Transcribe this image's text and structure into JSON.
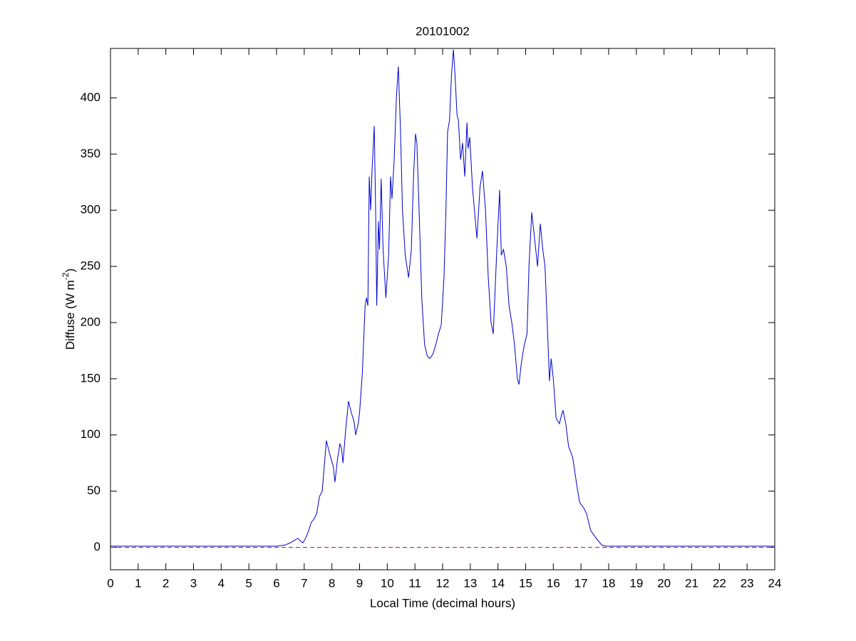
{
  "chart_data": {
    "type": "line",
    "title": "20101002",
    "xlabel": "Local Time (decimal hours)",
    "ylabel": [
      "Diffuse (W m",
      "-2",
      ")"
    ],
    "xlim": [
      0,
      24
    ],
    "xticks": [
      0,
      1,
      2,
      3,
      4,
      5,
      6,
      7,
      8,
      9,
      10,
      11,
      12,
      13,
      14,
      15,
      16,
      17,
      18,
      19,
      20,
      21,
      22,
      23,
      24
    ],
    "ylim": [
      -20,
      444
    ],
    "yticks": [
      0,
      50,
      100,
      150,
      200,
      250,
      300,
      350,
      400
    ],
    "hline": {
      "y": 0,
      "color": "#ff0000"
    },
    "series": [
      {
        "color": "#0000cc",
        "x": [
          0,
          0.5,
          1,
          1.5,
          2,
          2.5,
          3,
          3.5,
          4,
          4.5,
          5,
          5.5,
          6,
          6.3,
          6.5,
          6.77,
          6.85,
          6.95,
          7.05,
          7.15,
          7.25,
          7.35,
          7.45,
          7.55,
          7.65,
          7.8,
          7.9,
          8.0,
          8.05,
          8.11,
          8.2,
          8.29,
          8.35,
          8.4,
          8.5,
          8.6,
          8.7,
          8.8,
          8.86,
          8.95,
          9.0,
          9.1,
          9.2,
          9.25,
          9.3,
          9.35,
          9.4,
          9.45,
          9.53,
          9.58,
          9.62,
          9.68,
          9.72,
          9.78,
          9.85,
          9.95,
          10.05,
          10.12,
          10.17,
          10.25,
          10.33,
          10.4,
          10.48,
          10.55,
          10.65,
          10.77,
          10.87,
          10.95,
          11.02,
          11.07,
          11.15,
          11.25,
          11.35,
          11.45,
          11.54,
          11.65,
          11.75,
          11.85,
          11.95,
          12.05,
          12.12,
          12.18,
          12.25,
          12.32,
          12.39,
          12.45,
          12.52,
          12.57,
          12.65,
          12.72,
          12.8,
          12.88,
          12.92,
          12.98,
          13.08,
          13.24,
          13.35,
          13.44,
          13.55,
          13.65,
          13.75,
          13.83,
          13.95,
          14.06,
          14.12,
          14.2,
          14.3,
          14.4,
          14.5,
          14.6,
          14.7,
          14.76,
          14.85,
          14.95,
          15.05,
          15.12,
          15.22,
          15.3,
          15.43,
          15.53,
          15.62,
          15.7,
          15.78,
          15.86,
          15.92,
          16.0,
          16.1,
          16.22,
          16.3,
          16.35,
          16.45,
          16.55,
          16.7,
          16.85,
          16.95,
          17.1,
          17.2,
          17.35,
          17.55,
          17.75,
          17.9,
          18.5,
          19,
          20,
          21,
          22,
          23,
          24
        ],
        "values": [
          1,
          1,
          1,
          1,
          1,
          1,
          1,
          1,
          1,
          1,
          1,
          1,
          1,
          2,
          4,
          8,
          6,
          4,
          8,
          14,
          22,
          25,
          30,
          45,
          50,
          95,
          85,
          76,
          72,
          58,
          78,
          92,
          88,
          75,
          105,
          130,
          120,
          112,
          100,
          110,
          120,
          155,
          215,
          222,
          215,
          330,
          300,
          335,
          375,
          300,
          215,
          290,
          265,
          328,
          265,
          222,
          260,
          330,
          310,
          345,
          400,
          428,
          370,
          300,
          260,
          240,
          265,
          330,
          368,
          360,
          300,
          220,
          180,
          170,
          168,
          172,
          180,
          190,
          198,
          240,
          300,
          370,
          380,
          420,
          443,
          420,
          385,
          380,
          345,
          360,
          330,
          378,
          355,
          365,
          320,
          275,
          320,
          335,
          300,
          240,
          200,
          190,
          260,
          318,
          260,
          265,
          250,
          215,
          200,
          180,
          150,
          145,
          165,
          180,
          190,
          250,
          298,
          280,
          250,
          288,
          265,
          250,
          200,
          148,
          168,
          150,
          115,
          110,
          118,
          122,
          110,
          90,
          80,
          55,
          40,
          35,
          30,
          15,
          8,
          2,
          1,
          1,
          1,
          1,
          1,
          1,
          1,
          1
        ]
      }
    ]
  }
}
